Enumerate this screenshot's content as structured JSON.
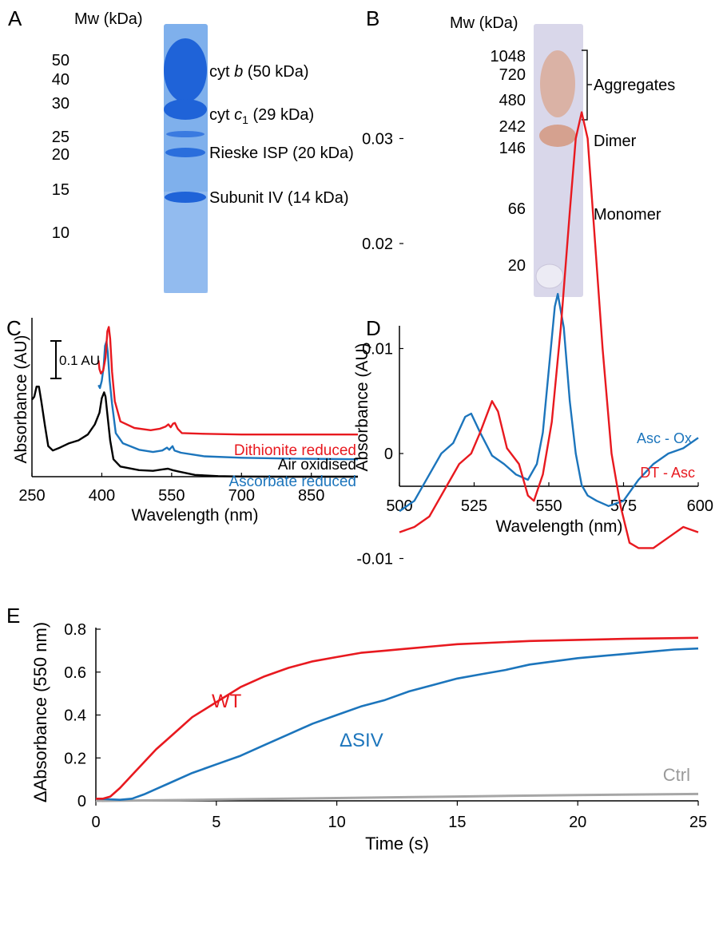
{
  "colors": {
    "red": "#e8191f",
    "blue": "#1c75bc",
    "black": "#000000",
    "gray": "#a6a6a6",
    "gel_a_bg": "#7fb0ec",
    "gel_a_band": "#1f63d8",
    "gel_b_bg": "#d9d7ea",
    "gel_b_band": "#d9a58e"
  },
  "panels": {
    "a": {
      "letter": "A",
      "mw_header": "Mw (kDa)",
      "markers": [
        "50",
        "40",
        "30",
        "25",
        "20",
        "15",
        "10"
      ],
      "bands": [
        {
          "prefix": "cyt ",
          "italic": "b",
          "sub": "",
          "suffix": " (50 kDa)"
        },
        {
          "prefix": "cyt ",
          "italic": "c",
          "sub": "1",
          "suffix": " (29 kDa)"
        },
        {
          "prefix": "Rieske ISP (20 kDa)",
          "italic": "",
          "sub": "",
          "suffix": ""
        },
        {
          "prefix": "Subunit IV (14 kDa)",
          "italic": "",
          "sub": "",
          "suffix": ""
        }
      ]
    },
    "b": {
      "letter": "B",
      "mw_header": "Mw (kDa)",
      "markers": [
        "1048",
        "720",
        "480",
        "242",
        "146",
        "66",
        "20"
      ],
      "labels": [
        "Aggregates",
        "Dimer",
        "Monomer"
      ]
    },
    "c": {
      "letter": "C",
      "scale_bar_label": "0.1 AU"
    },
    "d": {
      "letter": "D"
    },
    "e": {
      "letter": "E"
    }
  },
  "chart_data": [
    {
      "panel": "C",
      "type": "line",
      "xlabel": "Wavelength (nm)",
      "ylabel": "Absorbance (AU)",
      "xlim": [
        250,
        950
      ],
      "xticks": [
        250,
        400,
        550,
        700,
        850
      ],
      "y_axis_ticks": false,
      "scale_bar": 0.1,
      "series": [
        {
          "name": "Air oxidised",
          "color": "black",
          "points": [
            [
              250,
              0.53
            ],
            [
              255,
              0.55
            ],
            [
              260,
              0.62
            ],
            [
              265,
              0.62
            ],
            [
              270,
              0.52
            ],
            [
              278,
              0.35
            ],
            [
              285,
              0.21
            ],
            [
              295,
              0.18
            ],
            [
              310,
              0.2
            ],
            [
              330,
              0.23
            ],
            [
              350,
              0.25
            ],
            [
              370,
              0.29
            ],
            [
              385,
              0.36
            ],
            [
              395,
              0.44
            ],
            [
              400,
              0.54
            ],
            [
              405,
              0.58
            ],
            [
              408,
              0.55
            ],
            [
              412,
              0.43
            ],
            [
              418,
              0.25
            ],
            [
              425,
              0.12
            ],
            [
              440,
              0.07
            ],
            [
              480,
              0.045
            ],
            [
              510,
              0.04
            ],
            [
              530,
              0.05
            ],
            [
              542,
              0.055
            ],
            [
              552,
              0.045
            ],
            [
              565,
              0.035
            ],
            [
              600,
              0.012
            ],
            [
              650,
              0.004
            ],
            [
              700,
              0.001
            ],
            [
              800,
              0.0
            ],
            [
              950,
              0.0
            ]
          ]
        },
        {
          "name": "Ascorbate reduced",
          "color": "blue",
          "points": [
            [
              393,
              0.63
            ],
            [
              396,
              0.61
            ],
            [
              400,
              0.66
            ],
            [
              404,
              0.76
            ],
            [
              407,
              0.9
            ],
            [
              410,
              0.93
            ],
            [
              413,
              0.85
            ],
            [
              417,
              0.66
            ],
            [
              422,
              0.5
            ],
            [
              430,
              0.3
            ],
            [
              445,
              0.23
            ],
            [
              480,
              0.185
            ],
            [
              510,
              0.17
            ],
            [
              530,
              0.18
            ],
            [
              540,
              0.2
            ],
            [
              545,
              0.185
            ],
            [
              549,
              0.2
            ],
            [
              552,
              0.21
            ],
            [
              556,
              0.18
            ],
            [
              570,
              0.165
            ],
            [
              620,
              0.14
            ],
            [
              700,
              0.13
            ],
            [
              800,
              0.125
            ],
            [
              950,
              0.12
            ]
          ]
        },
        {
          "name": "Dithionite reduced",
          "color": "red",
          "points": [
            [
              393,
              0.8
            ],
            [
              395,
              0.74
            ],
            [
              398,
              0.71
            ],
            [
              403,
              0.73
            ],
            [
              408,
              0.82
            ],
            [
              412,
              1.0
            ],
            [
              415,
              1.03
            ],
            [
              418,
              0.95
            ],
            [
              422,
              0.72
            ],
            [
              428,
              0.52
            ],
            [
              440,
              0.38
            ],
            [
              470,
              0.335
            ],
            [
              505,
              0.32
            ],
            [
              525,
              0.33
            ],
            [
              537,
              0.345
            ],
            [
              543,
              0.36
            ],
            [
              548,
              0.34
            ],
            [
              553,
              0.365
            ],
            [
              557,
              0.37
            ],
            [
              563,
              0.33
            ],
            [
              572,
              0.3
            ],
            [
              620,
              0.295
            ],
            [
              700,
              0.29
            ],
            [
              800,
              0.29
            ],
            [
              950,
              0.29
            ]
          ]
        }
      ],
      "annotations": [
        "Dithionite reduced",
        "Ascorbate reduced",
        "Air oxidised"
      ]
    },
    {
      "panel": "D",
      "type": "line",
      "xlabel": "Wavelength (nm)",
      "ylabel": "Absorbance (AU)",
      "xlim": [
        500,
        600
      ],
      "ylim": [
        -0.01,
        0.035
      ],
      "xticks": [
        500,
        525,
        550,
        575,
        600
      ],
      "yticks": [
        -0.01,
        0,
        0.01,
        0.02,
        0.03
      ],
      "ytick_labels": [
        "-0.01",
        "0",
        "0.01",
        "0.02",
        "0.03"
      ],
      "series": [
        {
          "name": "Asc - Ox",
          "color": "blue",
          "points": [
            [
              500,
              -0.0055
            ],
            [
              505,
              -0.0045
            ],
            [
              510,
              -0.002
            ],
            [
              514,
              0.0
            ],
            [
              518,
              0.001
            ],
            [
              522,
              0.0035
            ],
            [
              524,
              0.0038
            ],
            [
              527,
              0.002
            ],
            [
              531,
              -0.0002
            ],
            [
              535,
              -0.001
            ],
            [
              539,
              -0.002
            ],
            [
              543,
              -0.0025
            ],
            [
              546,
              -0.001
            ],
            [
              548,
              0.002
            ],
            [
              550,
              0.008
            ],
            [
              552,
              0.014
            ],
            [
              553,
              0.0152
            ],
            [
              555,
              0.012
            ],
            [
              557,
              0.005
            ],
            [
              559,
              0.0
            ],
            [
              561,
              -0.003
            ],
            [
              563,
              -0.004
            ],
            [
              566,
              -0.0045
            ],
            [
              570,
              -0.005
            ],
            [
              575,
              -0.0045
            ],
            [
              580,
              -0.0025
            ],
            [
              585,
              -0.001
            ],
            [
              590,
              0.0
            ],
            [
              595,
              0.0005
            ],
            [
              600,
              0.0015
            ]
          ]
        },
        {
          "name": "DT - Asc",
          "color": "red",
          "points": [
            [
              500,
              -0.0075
            ],
            [
              505,
              -0.007
            ],
            [
              510,
              -0.006
            ],
            [
              515,
              -0.0035
            ],
            [
              520,
              -0.001
            ],
            [
              524,
              0.0
            ],
            [
              527,
              0.002
            ],
            [
              531,
              0.005
            ],
            [
              533,
              0.004
            ],
            [
              536,
              0.0005
            ],
            [
              540,
              -0.001
            ],
            [
              543,
              -0.004
            ],
            [
              545,
              -0.0045
            ],
            [
              548,
              -0.002
            ],
            [
              551,
              0.003
            ],
            [
              554,
              0.012
            ],
            [
              557,
              0.023
            ],
            [
              559,
              0.03
            ],
            [
              561,
              0.0325
            ],
            [
              563,
              0.03
            ],
            [
              565,
              0.022
            ],
            [
              568,
              0.01
            ],
            [
              571,
              0.0
            ],
            [
              574,
              -0.005
            ],
            [
              577,
              -0.0085
            ],
            [
              580,
              -0.009
            ],
            [
              585,
              -0.009
            ],
            [
              590,
              -0.008
            ],
            [
              595,
              -0.007
            ],
            [
              600,
              -0.0075
            ]
          ]
        }
      ],
      "annotations": [
        "Asc - Ox",
        "DT - Asc"
      ]
    },
    {
      "panel": "E",
      "type": "line",
      "xlabel": "Time (s)",
      "ylabel": "ΔAbsorbance (550 nm)",
      "xlim": [
        0,
        25
      ],
      "ylim": [
        0,
        0.8
      ],
      "xticks": [
        0,
        5,
        10,
        15,
        20,
        25
      ],
      "yticks": [
        0,
        0.2,
        0.4,
        0.6,
        0.8
      ],
      "ytick_labels": [
        "0",
        "0.2",
        "0.4",
        "0.6",
        "0.8"
      ],
      "series": [
        {
          "name": "WT",
          "color": "red",
          "points": [
            [
              0,
              0.01
            ],
            [
              0.3,
              0.01
            ],
            [
              0.6,
              0.02
            ],
            [
              1,
              0.06
            ],
            [
              1.5,
              0.12
            ],
            [
              2,
              0.18
            ],
            [
              2.5,
              0.24
            ],
            [
              3,
              0.29
            ],
            [
              3.5,
              0.34
            ],
            [
              4,
              0.39
            ],
            [
              5,
              0.46
            ],
            [
              6,
              0.53
            ],
            [
              7,
              0.58
            ],
            [
              8,
              0.62
            ],
            [
              9,
              0.65
            ],
            [
              10,
              0.67
            ],
            [
              11,
              0.69
            ],
            [
              12,
              0.7
            ],
            [
              13,
              0.71
            ],
            [
              14,
              0.72
            ],
            [
              15,
              0.73
            ],
            [
              16,
              0.735
            ],
            [
              18,
              0.745
            ],
            [
              20,
              0.75
            ],
            [
              22,
              0.755
            ],
            [
              25,
              0.76
            ]
          ]
        },
        {
          "name": "ΔSIV",
          "color": "blue",
          "points": [
            [
              0,
              0.01
            ],
            [
              1,
              0.005
            ],
            [
              1.5,
              0.01
            ],
            [
              2,
              0.03
            ],
            [
              2.5,
              0.055
            ],
            [
              3,
              0.08
            ],
            [
              4,
              0.13
            ],
            [
              5,
              0.17
            ],
            [
              6,
              0.21
            ],
            [
              7,
              0.26
            ],
            [
              8,
              0.31
            ],
            [
              9,
              0.36
            ],
            [
              10,
              0.4
            ],
            [
              11,
              0.44
            ],
            [
              12,
              0.47
            ],
            [
              13,
              0.51
            ],
            [
              14,
              0.54
            ],
            [
              15,
              0.57
            ],
            [
              16,
              0.59
            ],
            [
              17,
              0.61
            ],
            [
              18,
              0.635
            ],
            [
              19,
              0.65
            ],
            [
              20,
              0.665
            ],
            [
              21,
              0.675
            ],
            [
              22,
              0.685
            ],
            [
              23,
              0.695
            ],
            [
              24,
              0.705
            ],
            [
              25,
              0.71
            ]
          ]
        },
        {
          "name": "Ctrl",
          "color": "gray",
          "points": [
            [
              0,
              0.0
            ],
            [
              2,
              0.002
            ],
            [
              5,
              0.006
            ],
            [
              10,
              0.013
            ],
            [
              15,
              0.02
            ],
            [
              20,
              0.027
            ],
            [
              25,
              0.032
            ]
          ]
        }
      ],
      "annotations": [
        "WT",
        "ΔSIV",
        "Ctrl"
      ]
    }
  ]
}
